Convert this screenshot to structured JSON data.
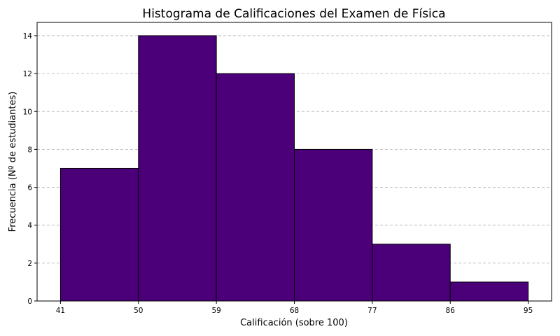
{
  "chart_data": {
    "type": "bar",
    "title": "Histograma de Calificaciones del Examen de Física",
    "xlabel": "Calificación (sobre 100)",
    "ylabel": "Frecuencia (Nº de estudiantes)",
    "bin_edges": [
      41,
      50,
      59,
      68,
      77,
      86,
      95
    ],
    "values": [
      7,
      14,
      12,
      8,
      3,
      1
    ],
    "xlim": [
      38.3,
      97.7
    ],
    "ylim": [
      0,
      14.7
    ],
    "yticks": [
      0,
      2,
      4,
      6,
      8,
      10,
      12,
      14
    ],
    "grid": "y-dashed",
    "bar_color": "#4b0079",
    "edge_color": "#000000"
  }
}
